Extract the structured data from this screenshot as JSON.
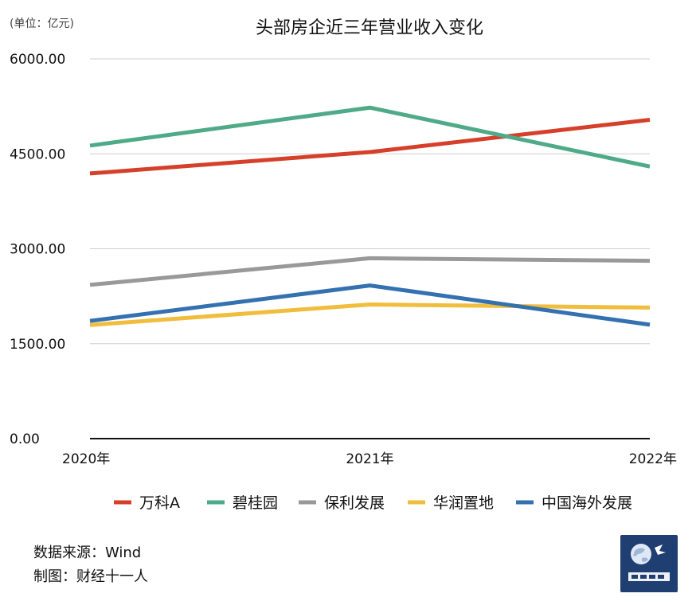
{
  "chart_data": {
    "type": "line",
    "title": "头部房企近三年营业收入变化",
    "unit_note": "(单位：亿元)",
    "categories": [
      "2020年",
      "2021年",
      "2022年"
    ],
    "ylim": [
      0,
      6000
    ],
    "yticks": [
      "0.00",
      "1500.00",
      "3000.00",
      "4500.00",
      "6000.00"
    ],
    "ytick_values": [
      0,
      1500,
      3000,
      4500,
      6000
    ],
    "grid": true,
    "legend_position": "bottom",
    "series": [
      {
        "name": "万科A",
        "color": "#d63f2a",
        "values": [
          4190,
          4528,
          5038
        ]
      },
      {
        "name": "碧桂园",
        "color": "#4faa8a",
        "values": [
          4630,
          5230,
          4300
        ]
      },
      {
        "name": "保利发展",
        "color": "#999999",
        "values": [
          2430,
          2850,
          2810
        ]
      },
      {
        "name": "华润置地",
        "color": "#f0bd3c",
        "values": [
          1795,
          2120,
          2070
        ]
      },
      {
        "name": "中国海外发展",
        "color": "#3471b0",
        "values": [
          1860,
          2420,
          1800
        ]
      }
    ]
  },
  "footer": {
    "source": "数据来源：Wind",
    "credit": "制图：财经十一人"
  },
  "logo": {
    "icon": "globe-logo-icon"
  }
}
